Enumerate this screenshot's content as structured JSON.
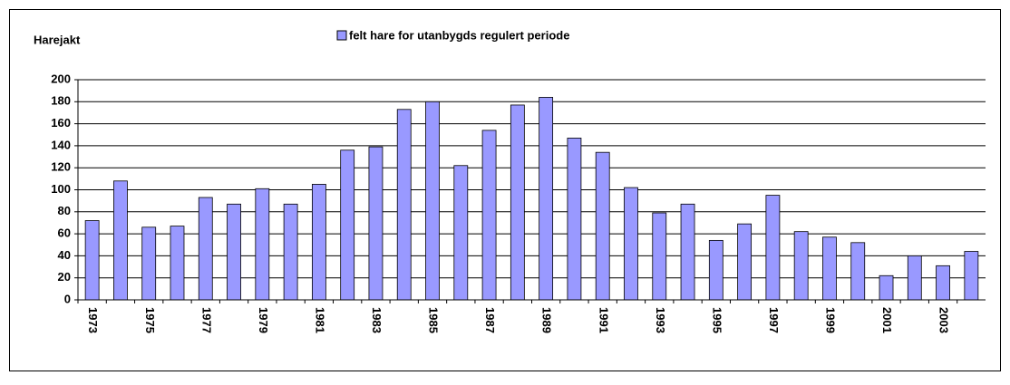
{
  "chart_data": {
    "type": "bar",
    "title": "Harejakt",
    "categories": [
      "1973",
      null,
      "1975",
      null,
      "1977",
      null,
      "1979",
      null,
      "1981",
      null,
      "1983",
      null,
      "1985",
      null,
      "1987",
      null,
      "1989",
      null,
      "1991",
      null,
      "1993",
      null,
      "1995",
      null,
      "1997",
      null,
      "1999",
      null,
      "2001",
      null,
      "2003",
      null
    ],
    "series": [
      {
        "name": "felt hare for utanbygds regulert periode",
        "color": "#9999ff",
        "values": [
          72,
          108,
          66,
          67,
          93,
          87,
          101,
          87,
          105,
          136,
          139,
          173,
          180,
          122,
          154,
          177,
          184,
          147,
          134,
          102,
          79,
          87,
          54,
          69,
          95,
          62,
          57,
          52,
          22,
          40,
          31,
          44
        ]
      }
    ],
    "ylim": [
      0,
      200
    ],
    "yticks": [
      0,
      20,
      40,
      60,
      80,
      100,
      120,
      140,
      160,
      180,
      200
    ],
    "grid": true,
    "legend": "top"
  }
}
